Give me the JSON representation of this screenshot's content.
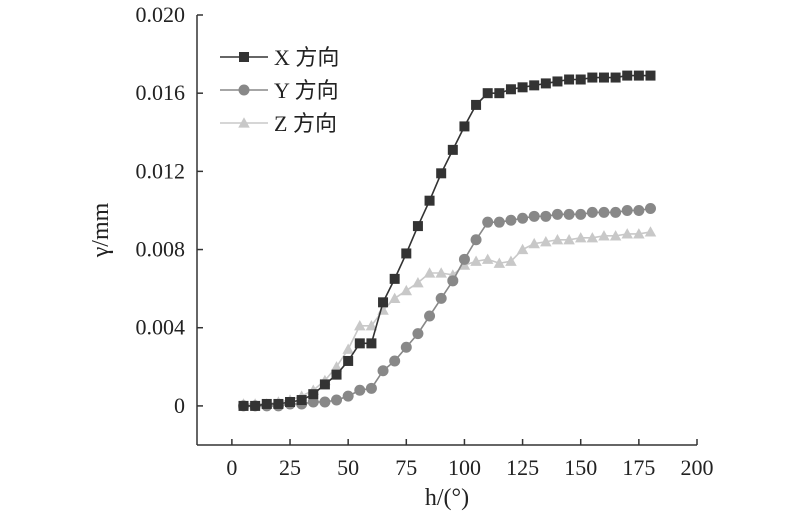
{
  "chart_data": {
    "type": "line",
    "xlabel": "h/(°)",
    "ylabel": "γ/mm",
    "xlim": [
      -15,
      200
    ],
    "ylim": [
      -0.002,
      0.02
    ],
    "x_ticks": [
      0,
      25,
      50,
      75,
      100,
      125,
      150,
      175,
      200
    ],
    "x_tick_labels": [
      "0",
      "25",
      "50",
      "75",
      "100",
      "125",
      "150",
      "175",
      "200"
    ],
    "y_ticks": [
      0,
      0.004,
      0.008,
      0.012,
      0.016,
      0.02
    ],
    "y_tick_labels": [
      "0",
      "0.004",
      "0.008",
      "0.012",
      "0.016",
      "0.020"
    ],
    "grid": false,
    "legend_position": "top-left",
    "series": [
      {
        "name": "X 方向",
        "marker": "square",
        "color": "#333333",
        "x": [
          5,
          10,
          15,
          20,
          25,
          30,
          35,
          40,
          45,
          50,
          55,
          60,
          65,
          70,
          75,
          80,
          85,
          90,
          95,
          100,
          105,
          110,
          115,
          120,
          125,
          130,
          135,
          140,
          145,
          150,
          155,
          160,
          165,
          170,
          175,
          180
        ],
        "y": [
          0,
          0,
          0.0001,
          0.0001,
          0.0002,
          0.0003,
          0.0006,
          0.0011,
          0.0016,
          0.0023,
          0.0032,
          0.0032,
          0.0053,
          0.0065,
          0.0078,
          0.0092,
          0.0105,
          0.0119,
          0.0131,
          0.0143,
          0.0154,
          0.016,
          0.016,
          0.0162,
          0.0163,
          0.0164,
          0.0165,
          0.0166,
          0.0167,
          0.0167,
          0.0168,
          0.0168,
          0.0168,
          0.0169,
          0.0169,
          0.0169
        ]
      },
      {
        "name": "Y 方向",
        "marker": "circle",
        "color": "#888888",
        "x": [
          5,
          10,
          15,
          20,
          25,
          30,
          35,
          40,
          45,
          50,
          55,
          60,
          65,
          70,
          75,
          80,
          85,
          90,
          95,
          100,
          105,
          110,
          115,
          120,
          125,
          130,
          135,
          140,
          145,
          150,
          155,
          160,
          165,
          170,
          175,
          180
        ],
        "y": [
          0,
          0,
          0,
          0,
          0.0001,
          0.0001,
          0.0002,
          0.0002,
          0.0003,
          0.0005,
          0.0008,
          0.0009,
          0.0018,
          0.0023,
          0.003,
          0.0037,
          0.0046,
          0.0055,
          0.0064,
          0.0075,
          0.0085,
          0.0094,
          0.0094,
          0.0095,
          0.0096,
          0.0097,
          0.0097,
          0.0098,
          0.0098,
          0.0098,
          0.0099,
          0.0099,
          0.0099,
          0.01,
          0.01,
          0.0101
        ]
      },
      {
        "name": "Z 方向",
        "marker": "triangle",
        "color": "#c8c8c8",
        "x": [
          5,
          10,
          15,
          20,
          25,
          30,
          35,
          40,
          45,
          50,
          55,
          60,
          65,
          70,
          75,
          80,
          85,
          90,
          95,
          100,
          105,
          110,
          115,
          120,
          125,
          130,
          135,
          140,
          145,
          150,
          155,
          160,
          165,
          170,
          175,
          180
        ],
        "y": [
          0.0001,
          0.0001,
          0.0001,
          0.0002,
          0.0003,
          0.0005,
          0.0008,
          0.0013,
          0.002,
          0.0029,
          0.0041,
          0.0041,
          0.0049,
          0.0055,
          0.0059,
          0.0063,
          0.0068,
          0.0068,
          0.0067,
          0.0072,
          0.0074,
          0.0075,
          0.0073,
          0.0074,
          0.008,
          0.0083,
          0.0084,
          0.0085,
          0.0085,
          0.0086,
          0.0086,
          0.0087,
          0.0087,
          0.0088,
          0.0088,
          0.0089
        ]
      }
    ]
  }
}
